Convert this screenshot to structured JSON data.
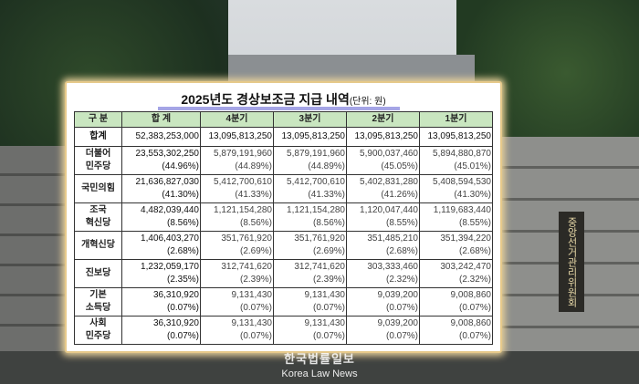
{
  "sign_text": "중앙선거관리위원회",
  "title": "2025년도 경상보조금 지급 내역",
  "unit": "(단위: 원)",
  "headers": [
    "구  분",
    "합  계",
    "4분기",
    "3분기",
    "2분기",
    "1분기"
  ],
  "total_row": {
    "label": "합계",
    "values": [
      "52,383,253,000",
      "13,095,813,250",
      "13,095,813,250",
      "13,095,813,250",
      "13,095,813,250"
    ]
  },
  "rows": [
    {
      "label": [
        "더불어",
        "민주당"
      ],
      "values": [
        "23,553,302,250",
        "5,879,191,960",
        "5,879,191,960",
        "5,900,037,460",
        "5,894,880,870"
      ],
      "shares": [
        "(44.96%)",
        "(44.89%)",
        "(44.89%)",
        "(45.05%)",
        "(45.01%)"
      ]
    },
    {
      "label": [
        "국민의힘",
        ""
      ],
      "values": [
        "21,636,827,030",
        "5,412,700,610",
        "5,412,700,610",
        "5,402,831,280",
        "5,408,594,530"
      ],
      "shares": [
        "(41.30%)",
        "(41.33%)",
        "(41.33%)",
        "(41.26%)",
        "(41.30%)"
      ]
    },
    {
      "label": [
        "조국",
        "혁신당"
      ],
      "values": [
        "4,482,039,440",
        "1,121,154,280",
        "1,121,154,280",
        "1,120,047,440",
        "1,119,683,440"
      ],
      "shares": [
        "(8.56%)",
        "(8.56%)",
        "(8.56%)",
        "(8.55%)",
        "(8.55%)"
      ]
    },
    {
      "label": [
        "개혁신당",
        ""
      ],
      "values": [
        "1,406,403,270",
        "351,761,920",
        "351,761,920",
        "351,485,210",
        "351,394,220"
      ],
      "shares": [
        "(2.68%)",
        "(2.69%)",
        "(2.69%)",
        "(2.68%)",
        "(2.68%)"
      ]
    },
    {
      "label": [
        "진보당",
        ""
      ],
      "values": [
        "1,232,059,170",
        "312,741,620",
        "312,741,620",
        "303,333,460",
        "303,242,470"
      ],
      "shares": [
        "(2.35%)",
        "(2.39%)",
        "(2.39%)",
        "(2.32%)",
        "(2.32%)"
      ]
    },
    {
      "label": [
        "기본",
        "소득당"
      ],
      "values": [
        "36,310,920",
        "9,131,430",
        "9,131,430",
        "9,039,200",
        "9,008,860"
      ],
      "shares": [
        "(0.07%)",
        "(0.07%)",
        "(0.07%)",
        "(0.07%)",
        "(0.07%)"
      ]
    },
    {
      "label": [
        "사회",
        "민주당"
      ],
      "values": [
        "36,310,920",
        "9,131,430",
        "9,131,430",
        "9,039,200",
        "9,008,860"
      ],
      "shares": [
        "(0.07%)",
        "(0.07%)",
        "(0.07%)",
        "(0.07%)",
        "(0.07%)"
      ]
    }
  ],
  "watermark": {
    "ko": "한국법률일보",
    "en": "Korea Law News"
  }
}
